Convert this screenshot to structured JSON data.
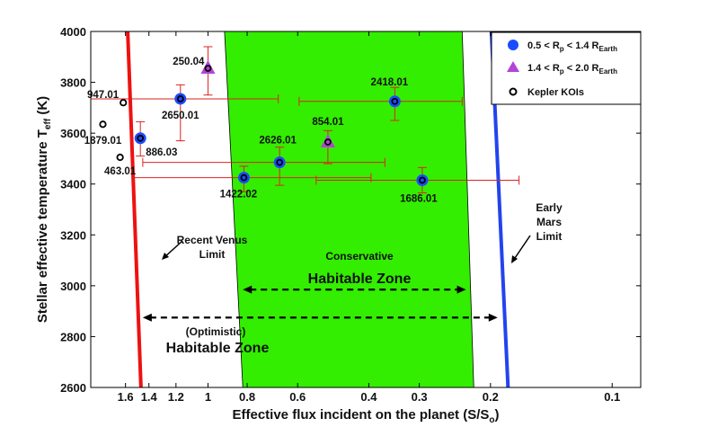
{
  "chart_data": {
    "type": "scatter",
    "xlabel": "Effective flux incident on the planet (S/S",
    "xlabel_sub": "o",
    "xlabel_tail": ")",
    "ylabel": "Stellar effective temperature T",
    "ylabel_sub": "eff",
    "ylabel_tail": " (K)",
    "x_scale": "log-reversed",
    "xlim": [
      1.95,
      0.085
    ],
    "ylim": [
      2600,
      4000
    ],
    "x_ticks": [
      1.6,
      1.4,
      1.2,
      1,
      0.8,
      0.6,
      0.4,
      0.3,
      0.2,
      0.1
    ],
    "x_tick_labels": [
      "1.6",
      "1.4",
      "1.2",
      "1",
      "0.8",
      "0.6",
      "0.4",
      "0.3",
      "0.2",
      "0.1"
    ],
    "y_ticks": [
      2600,
      2800,
      3000,
      3200,
      3400,
      3600,
      3800,
      4000
    ],
    "y_tick_labels": [
      "2600",
      "2800",
      "3000",
      "3200",
      "3400",
      "3600",
      "3800",
      "4000"
    ],
    "grid": false,
    "legend_position": "top-right",
    "colors": {
      "habitable_zone": "#33ee00",
      "venus_line": "#ee1111",
      "mars_line": "#2244ee",
      "error_bar": "#dd2222",
      "small_planet": "#1a4cff",
      "mid_planet": "#b443d6",
      "koi_marker": "#000000"
    },
    "zones": {
      "conservative": {
        "label_line1": "Conservative",
        "label_line2": "Habitable Zone",
        "top_left": 0.91,
        "top_right": 0.235,
        "bottom_left": 0.82,
        "bottom_right": 0.22
      },
      "optimistic": {
        "label_line1": "(Optimistic)",
        "label_line2": "Habitable Zone"
      }
    },
    "limits": {
      "venus": {
        "label_line1": "Recent Venus",
        "label_line2": "Limit",
        "top_flux": 1.58,
        "bottom_flux": 1.465
      },
      "mars": {
        "label_line1": "Early",
        "label_line2": "Mars",
        "label_line3": "Limit",
        "top_flux": 0.199,
        "bottom_flux": 0.181
      }
    },
    "arrows": {
      "conservative": {
        "from": 0.82,
        "to": 0.23,
        "y": 2985
      },
      "optimistic": {
        "from": 1.45,
        "to": 0.192,
        "y": 2875
      }
    },
    "legend": [
      {
        "kind": "circle",
        "label": "0.5 < R",
        "sub": "p",
        "tail": " < 1.4 R",
        "sub2": "Earth"
      },
      {
        "kind": "triangle",
        "label": "1.4 < R",
        "sub": "p",
        "tail": " < 2.0 R",
        "sub2": "Earth"
      },
      {
        "kind": "open",
        "label": "Kepler KOIs",
        "sub": "",
        "tail": "",
        "sub2": ""
      }
    ],
    "points": [
      {
        "name": "250.04",
        "x": 1.0,
        "y": 3855,
        "xerr_lo": 1.0,
        "xerr_hi": 1.0,
        "yerr_lo": 3750,
        "yerr_hi": 3940,
        "kind": "triangle"
      },
      {
        "name": "947.01",
        "x": 1.62,
        "y": 3720,
        "xerr_lo": 1.62,
        "xerr_hi": 1.62,
        "yerr_lo": 3720,
        "yerr_hi": 3720,
        "kind": "open"
      },
      {
        "name": "2650.01",
        "x": 1.17,
        "y": 3735,
        "xerr_lo": 1.95,
        "xerr_hi": 0.67,
        "yerr_lo": 3570,
        "yerr_hi": 3790,
        "kind": "circle"
      },
      {
        "name": "2418.01",
        "x": 0.345,
        "y": 3725,
        "xerr_lo": 0.595,
        "xerr_hi": 0.235,
        "yerr_lo": 3650,
        "yerr_hi": 3780,
        "kind": "circle"
      },
      {
        "name": "1879.01",
        "x": 1.82,
        "y": 3635,
        "xerr_lo": 1.82,
        "xerr_hi": 1.82,
        "yerr_lo": 3635,
        "yerr_hi": 3635,
        "kind": "open"
      },
      {
        "name": "886.03",
        "x": 1.47,
        "y": 3580,
        "xerr_lo": 1.47,
        "xerr_hi": 1.47,
        "yerr_lo": 3510,
        "yerr_hi": 3645,
        "kind": "circle"
      },
      {
        "name": "854.01",
        "x": 0.505,
        "y": 3565,
        "xerr_lo": 0.505,
        "xerr_hi": 0.505,
        "yerr_lo": 3480,
        "yerr_hi": 3610,
        "kind": "triangle"
      },
      {
        "name": "463.01",
        "x": 1.65,
        "y": 3505,
        "xerr_lo": 1.65,
        "xerr_hi": 1.65,
        "yerr_lo": 3505,
        "yerr_hi": 3505,
        "kind": "open"
      },
      {
        "name": "2626.01",
        "x": 0.665,
        "y": 3485,
        "xerr_lo": 1.45,
        "xerr_hi": 0.365,
        "yerr_lo": 3395,
        "yerr_hi": 3545,
        "kind": "circle"
      },
      {
        "name": "1422.02",
        "x": 0.815,
        "y": 3425,
        "xerr_lo": 1.53,
        "xerr_hi": 0.395,
        "yerr_lo": 3370,
        "yerr_hi": 3470,
        "kind": "circle"
      },
      {
        "name": "1686.01",
        "x": 0.295,
        "y": 3415,
        "xerr_lo": 0.54,
        "xerr_hi": 0.17,
        "yerr_lo": 3365,
        "yerr_hi": 3465,
        "kind": "circle"
      }
    ]
  }
}
